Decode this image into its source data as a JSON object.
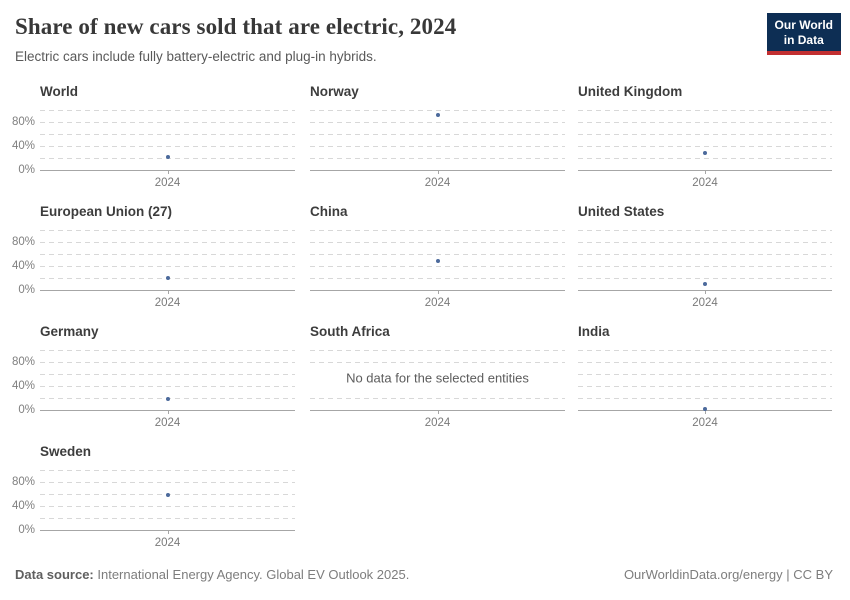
{
  "header": {
    "title": "Share of new cars sold that are electric, 2024",
    "subtitle": "Electric cars include fully battery-electric and plug-in hybrids.",
    "logo_line1": "Our World",
    "logo_line2": "in Data"
  },
  "colors": {
    "dot": "#4c6a9c",
    "logo_navy": "#0d2e54",
    "logo_red": "#c22f31",
    "gridline": "#d8d8d8",
    "axis": "#a6a6a6"
  },
  "chart_data": {
    "type": "scatter",
    "title": "Share of new cars sold that are electric, 2024",
    "x": [
      2024
    ],
    "x_tick_label": "2024",
    "unit": "%",
    "ylim": [
      0,
      100
    ],
    "gridline_percents": [
      0,
      20,
      40,
      60,
      80,
      100
    ],
    "y_tick_labels": [
      {
        "pct": 0,
        "label": "0%"
      },
      {
        "pct": 40,
        "label": "40%"
      },
      {
        "pct": 80,
        "label": "80%"
      }
    ],
    "legend_position": "none",
    "grid": true,
    "series": [
      {
        "name": "World",
        "values": [
          22
        ]
      },
      {
        "name": "Norway",
        "values": [
          92
        ]
      },
      {
        "name": "United Kingdom",
        "values": [
          28
        ]
      },
      {
        "name": "European Union (27)",
        "values": [
          20
        ]
      },
      {
        "name": "China",
        "values": [
          48
        ]
      },
      {
        "name": "United States",
        "values": [
          10
        ]
      },
      {
        "name": "Germany",
        "values": [
          19
        ]
      },
      {
        "name": "South Africa",
        "values": [],
        "no_data": true,
        "message": "No data for the selected entities"
      },
      {
        "name": "India",
        "values": [
          2
        ]
      },
      {
        "name": "Sweden",
        "values": [
          59
        ]
      }
    ]
  },
  "footer": {
    "source_label": "Data source:",
    "source_text": "International Energy Agency. Global EV Outlook 2025.",
    "credit": "OurWorldinData.org/energy | CC BY"
  }
}
